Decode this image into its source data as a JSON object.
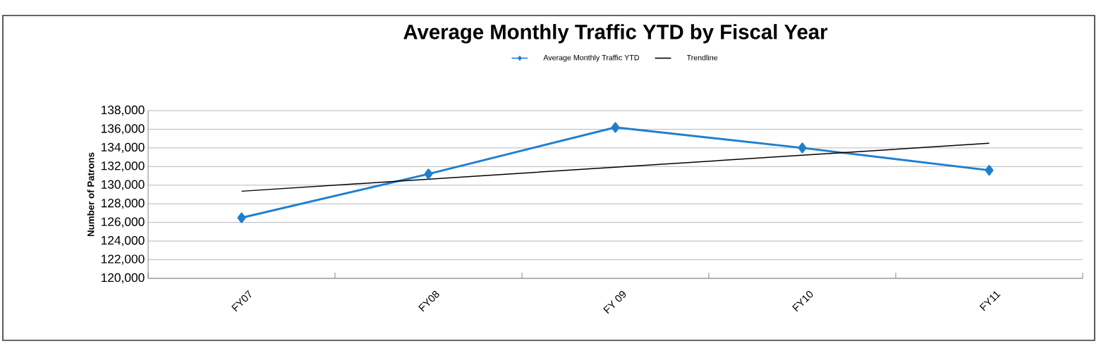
{
  "chart_data": {
    "type": "line",
    "title": "Average Monthly Traffic YTD by Fiscal Year",
    "ylabel": "Number of Patrons",
    "categories": [
      "FY07",
      "FY08",
      "FY 09",
      "FY10",
      "FY11"
    ],
    "series": [
      {
        "name": "Average Monthly Traffic YTD",
        "color": "#1f7fcf",
        "marker": "diamond",
        "values": [
          126500,
          131200,
          136200,
          134000,
          131600
        ]
      },
      {
        "name": "Trendline",
        "type": "line",
        "color": "#000000",
        "marker": "none",
        "values": [
          129350,
          130640,
          131930,
          133210,
          134500
        ]
      }
    ],
    "ylim": [
      120000,
      138000
    ],
    "yticks": [
      {
        "value": 120000,
        "label": "120,000"
      },
      {
        "value": 122000,
        "label": "122,000"
      },
      {
        "value": 124000,
        "label": "124,000"
      },
      {
        "value": 126000,
        "label": "126,000"
      },
      {
        "value": 128000,
        "label": "128,000"
      },
      {
        "value": 130000,
        "label": "130,000"
      },
      {
        "value": 132000,
        "label": "132,000"
      },
      {
        "value": 134000,
        "label": "134,000"
      },
      {
        "value": 136000,
        "label": "136,000"
      },
      {
        "value": 138000,
        "label": "138,000"
      }
    ],
    "grid": "y",
    "legend": "top",
    "line_style": "solid"
  }
}
